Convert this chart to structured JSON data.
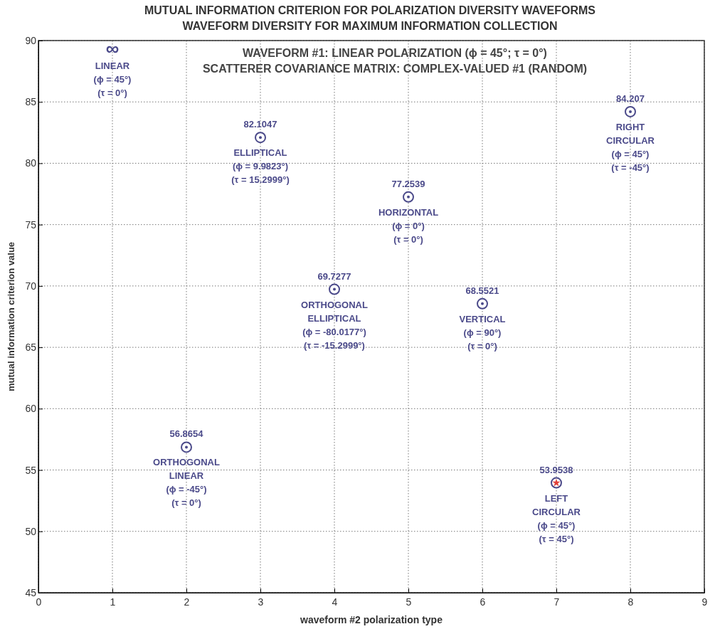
{
  "chart_data": {
    "type": "scatter",
    "title": "MUTUAL INFORMATION CRITERION FOR POLARIZATION DIVERSITY WAVEFORMS\nWAVEFORM DIVERSITY FOR MAXIMUM INFORMATION COLLECTION",
    "subtitle": "WAVEFORM #1: LINEAR POLARIZATION (ϕ = 45°; τ = 0°)\nSCATTERER COVARIANCE MATRIX: COMPLEX-VALUED #1 (RANDOM)",
    "xlabel": "waveform #2 polarization type",
    "ylabel": "mutual information criterion value",
    "x": [
      2,
      3,
      4,
      5,
      6,
      7,
      8
    ],
    "series": [
      {
        "marker": "circle",
        "color": "#4b4a8a",
        "values": [
          56.8654,
          82.1047,
          69.7277,
          77.2539,
          68.5521,
          53.9538,
          84.207
        ],
        "value_labels": [
          "56.8654",
          "82.1047",
          "69.7277",
          "77.2539",
          "68.5521",
          "53.9538",
          "84.207"
        ]
      },
      {
        "marker": "star",
        "color": "#e0403a",
        "x": [
          7
        ],
        "values": [
          53.9538
        ]
      }
    ],
    "annotations": [
      "∞",
      "LINEAR\n(ϕ = 45°)\n(τ = 0°)",
      {
        "text": "ORTHOGONAL\nLINEAR\n(ϕ = -45°)\n(τ = 0°)",
        "x": 2,
        "y": 56.8654
      },
      {
        "text": "ELLIPTICAL\n(ϕ = 9.9823°)\n(τ = 15.2999°)",
        "x": 3,
        "y": 82.1047
      },
      {
        "text": "ORTHOGONAL\nELLIPTICAL\n(ϕ = -80.0177°)\n(τ = -15.2999°)",
        "x": 4,
        "y": 69.7277
      },
      {
        "text": "HORIZONTAL\n(ϕ = 0°)\n(τ = 0°)",
        "x": 5,
        "y": 77.2539
      },
      {
        "text": "VERTICAL\n(ϕ = 90°)\n(τ = 0°)",
        "x": 6,
        "y": 68.5521
      },
      {
        "text": "LEFT\nCIRCULAR\n(ϕ = 45°)\n(τ = 45°)",
        "x": 7,
        "y": 53.9538
      },
      {
        "text": "RIGHT\nCIRCULAR\n(ϕ = 45°)\n(τ = -45°)",
        "x": 8,
        "y": 84.207
      }
    ],
    "xlim": [
      0,
      9
    ],
    "xticks": [
      0,
      1,
      2,
      3,
      4,
      5,
      6,
      7,
      8,
      9
    ],
    "ylim": [
      45,
      90
    ],
    "yticks": [
      45,
      50,
      55,
      60,
      65,
      70,
      75,
      80,
      85,
      90
    ],
    "grid": true
  }
}
